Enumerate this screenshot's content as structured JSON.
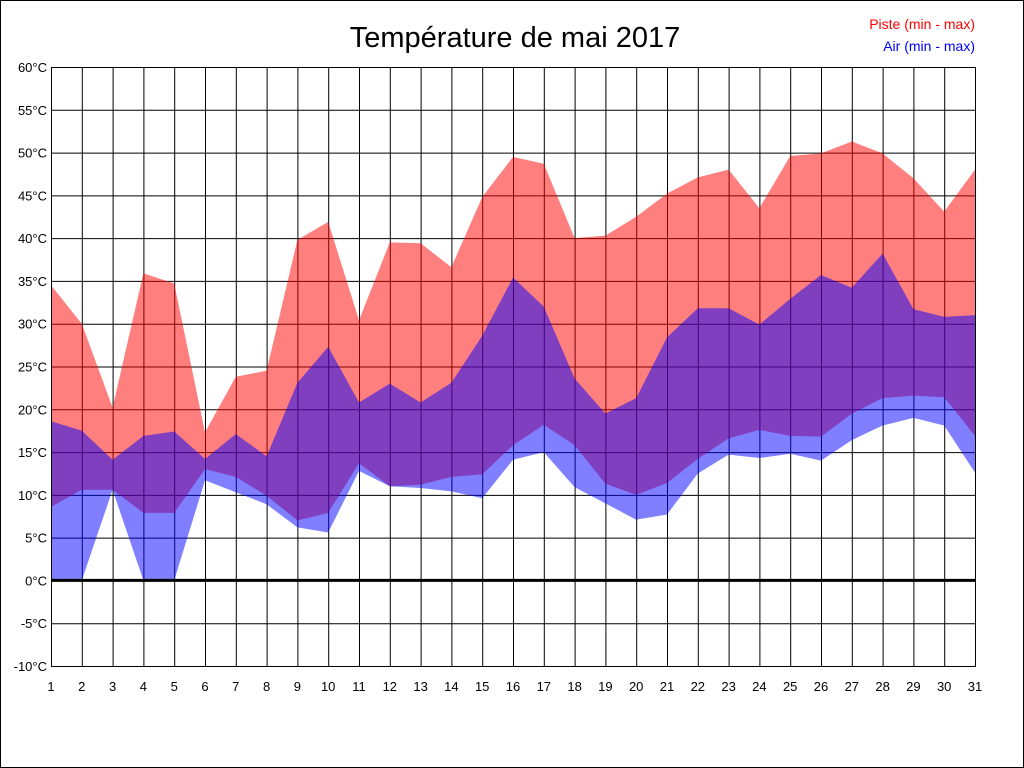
{
  "chart_data": {
    "type": "area",
    "title": "Température de mai 2017",
    "xlabel": "",
    "ylabel": "",
    "x": [
      1,
      2,
      3,
      4,
      5,
      6,
      7,
      8,
      9,
      10,
      11,
      12,
      13,
      14,
      15,
      16,
      17,
      18,
      19,
      20,
      21,
      22,
      23,
      24,
      25,
      26,
      27,
      28,
      29,
      30,
      31
    ],
    "xlim": [
      1,
      31
    ],
    "ylim": [
      -10,
      60
    ],
    "y_ticks": [
      -10,
      -5,
      0,
      5,
      10,
      15,
      20,
      25,
      30,
      35,
      40,
      45,
      50,
      55,
      60
    ],
    "y_tick_suffix": "°C",
    "grid": true,
    "legend_position": "top-right",
    "series": [
      {
        "name": "Piste (min - max)",
        "color": "#ff0000",
        "min": [
          8.6,
          10.6,
          10.6,
          7.9,
          7.9,
          13.0,
          12.1,
          9.9,
          7.0,
          7.9,
          13.7,
          11.0,
          11.2,
          12.1,
          12.4,
          15.8,
          18.2,
          15.8,
          11.3,
          10.0,
          11.4,
          14.2,
          16.6,
          17.6,
          16.9,
          16.8,
          19.5,
          21.3,
          21.6,
          21.4,
          16.9
        ],
        "max": [
          34.5,
          30.0,
          20.2,
          35.9,
          34.7,
          17.3,
          23.8,
          24.5,
          39.8,
          41.9,
          30.4,
          39.5,
          39.4,
          36.6,
          44.8,
          49.5,
          48.7,
          40.0,
          40.3,
          42.5,
          45.2,
          47.1,
          48.0,
          43.5,
          49.6,
          49.9,
          51.3,
          49.9,
          47.0,
          43.1,
          48.0
        ]
      },
      {
        "name": "Air (min - max)",
        "color": "#0000ff",
        "min": [
          0,
          0,
          10.6,
          0,
          0,
          11.7,
          10.3,
          8.9,
          6.2,
          5.6,
          12.8,
          11.0,
          10.8,
          10.4,
          9.6,
          14.1,
          15.0,
          10.9,
          9.0,
          7.1,
          7.7,
          12.5,
          14.7,
          14.3,
          14.8,
          14.0,
          16.4,
          18.1,
          19.0,
          18.1,
          12.6
        ],
        "max": [
          18.6,
          17.5,
          14.1,
          16.9,
          17.4,
          14.2,
          17.1,
          14.5,
          23.1,
          27.3,
          20.8,
          23.0,
          20.8,
          23.1,
          28.6,
          35.4,
          32.0,
          23.6,
          19.5,
          21.3,
          28.4,
          31.8,
          31.8,
          29.9,
          32.9,
          35.7,
          34.2,
          38.2,
          31.7,
          30.8,
          31.0
        ]
      }
    ]
  }
}
